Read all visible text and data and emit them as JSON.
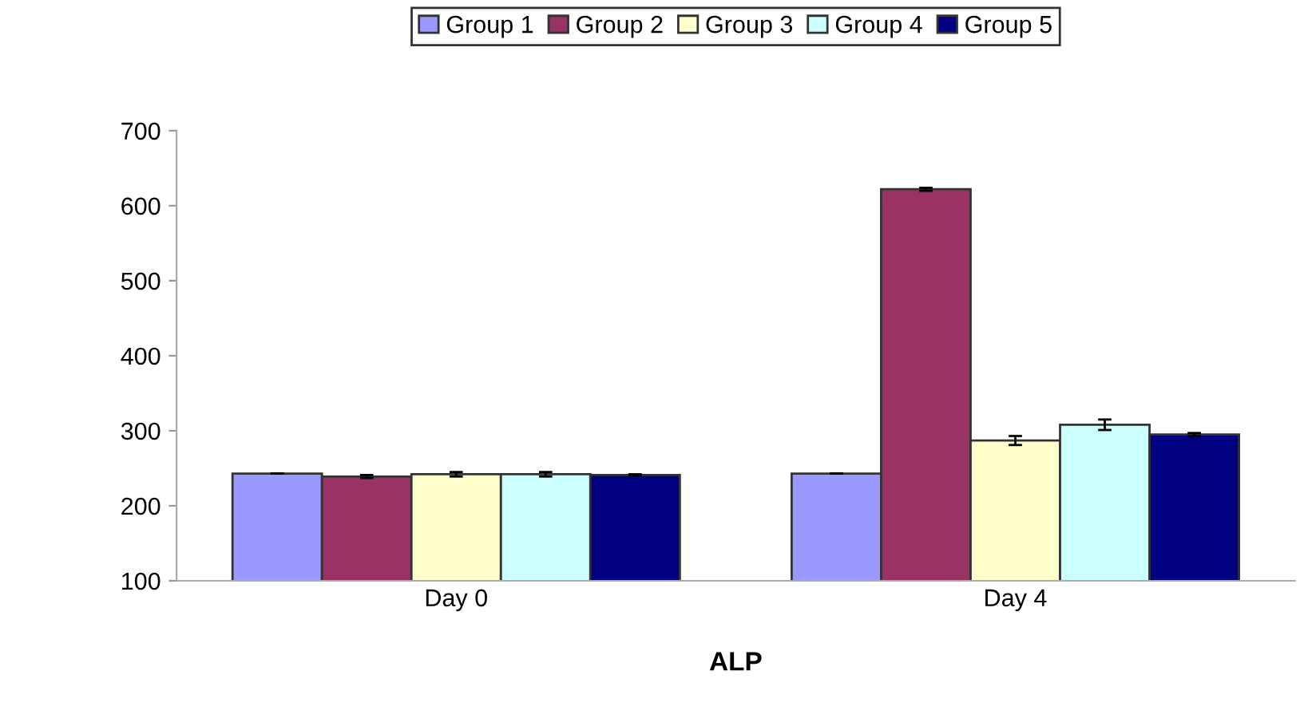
{
  "chart_data": {
    "type": "bar",
    "xlabel": "ALP",
    "categories": [
      "Day 0",
      "Day 4"
    ],
    "series": [
      {
        "name": "Group 1",
        "color": "#9999ff",
        "values": [
          243,
          243
        ],
        "errors": [
          null,
          null
        ]
      },
      {
        "name": "Group 2",
        "color": "#993366",
        "values": [
          239,
          622
        ],
        "errors": [
          2,
          2
        ]
      },
      {
        "name": "Group 3",
        "color": "#ffffcc",
        "values": [
          242,
          287
        ],
        "errors": [
          3,
          6
        ]
      },
      {
        "name": "Group 4",
        "color": "#ccffff",
        "values": [
          242,
          308
        ],
        "errors": [
          3,
          7
        ]
      },
      {
        "name": "Group 5",
        "color": "#000080",
        "values": [
          241,
          295
        ],
        "errors": [
          1,
          2
        ]
      }
    ],
    "ylim": [
      100,
      700
    ],
    "yticks": [
      100,
      200,
      300,
      400,
      500,
      600,
      700
    ],
    "grid": false,
    "legend": "top"
  }
}
